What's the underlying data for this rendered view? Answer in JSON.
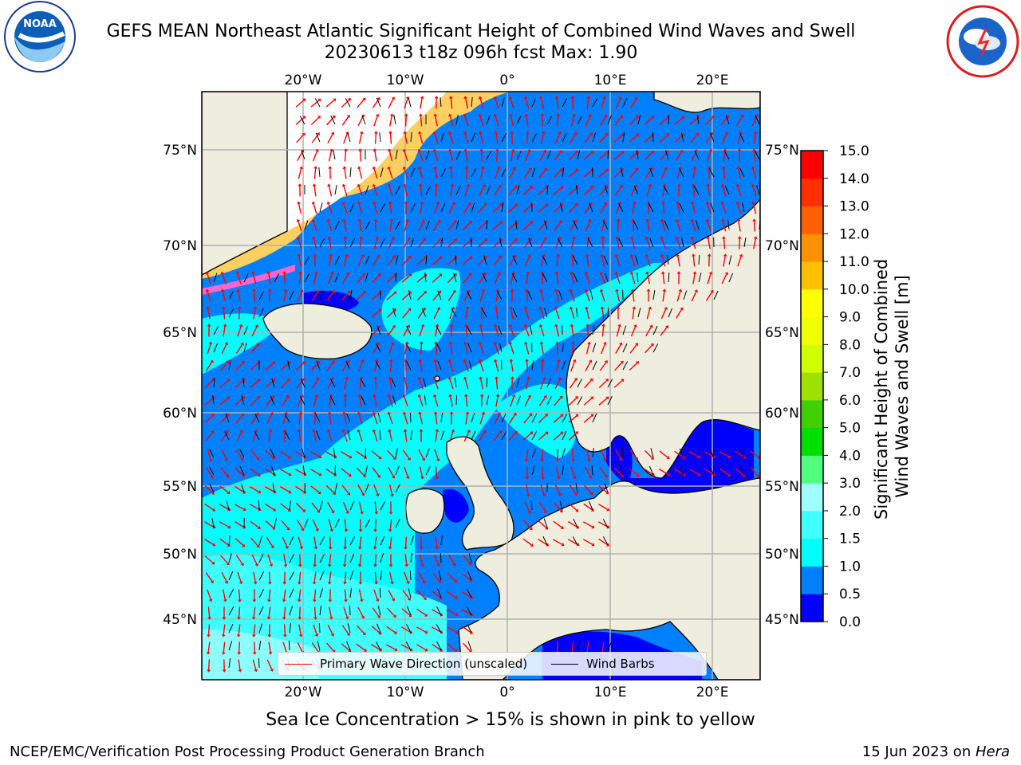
{
  "header": {
    "title_line1": "GEFS MEAN Northeast Atlantic Significant Height of Combined Wind Waves and Swell",
    "title_line2": "20230613 t18z 096h fcst   Max: 1.90"
  },
  "logos": {
    "noaa": {
      "text": "NOAA",
      "ring_text": "NATIONAL OCEANIC AND ATMOSPHERIC ADMINISTRATION · U.S. DEPARTMENT OF COMMERCE"
    },
    "nws": {
      "ring_text": "NATIONAL WEATHER SERVICE"
    }
  },
  "map": {
    "lon_labels": [
      "20°W",
      "10°W",
      "0°",
      "10°E",
      "20°E"
    ],
    "lat_labels": [
      "75°N",
      "70°N",
      "65°N",
      "60°N",
      "55°N",
      "50°N",
      "45°N"
    ],
    "colors": {
      "land": "#efedde",
      "ice_free_unshaded": "#ffffff",
      "grid": "#b0b0b0"
    }
  },
  "legend": {
    "wave_label": "Primary Wave Direction (unscaled)",
    "wave_color": "#ff0000",
    "wind_label": "Wind Barbs",
    "wind_color": "#000000"
  },
  "colorbar": {
    "title_line1": "Significant Height of Combined",
    "title_line2": "Wind Waves and Swell [m]",
    "ticks": [
      "0.0",
      "0.5",
      "1.0",
      "1.5",
      "2.0",
      "3.0",
      "4.0",
      "5.0",
      "6.0",
      "7.0",
      "8.0",
      "9.0",
      "10.0",
      "11.0",
      "12.0",
      "13.0",
      "14.0",
      "15.0"
    ],
    "colors": [
      "#0000ff",
      "#0080ff",
      "#00ffff",
      "#40ffff",
      "#a0ffff",
      "#50ff80",
      "#00e000",
      "#40d000",
      "#a0e000",
      "#d0ff00",
      "#f0ff00",
      "#ffff00",
      "#ffc000",
      "#ff9000",
      "#ff6000",
      "#ff3000",
      "#ff0000"
    ]
  },
  "footnote": "Sea Ice Concentration > 15% is shown in pink to yellow",
  "footer": {
    "left": "NCEP/EMC/Verification Post Processing Product Generation Branch",
    "right_prefix": "15 Jun 2023 on ",
    "right_host": "Hera"
  }
}
